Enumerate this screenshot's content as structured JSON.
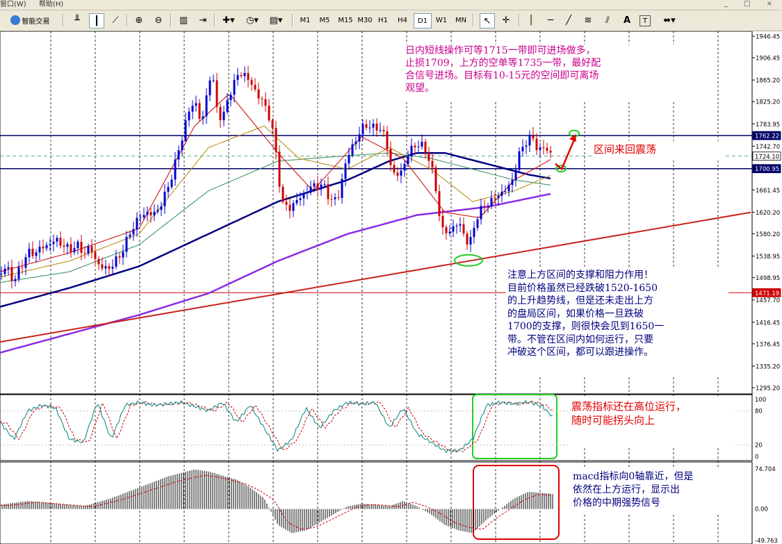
{
  "menu": {
    "items": [
      "窗口(W)",
      "帮助(H)"
    ],
    "window_controls": "_ □ ×"
  },
  "toolbar": {
    "expert_label": "智能交易",
    "timeframes": [
      "M1",
      "M5",
      "M15",
      "M30",
      "H1",
      "H4",
      "D1",
      "W1",
      "MN"
    ],
    "active_timeframe": "D1",
    "icons": [
      "bar-chart-icon",
      "candlestick-icon",
      "line-chart-icon",
      "zoom-in-icon",
      "zoom-out-icon",
      "tile-windows-icon",
      "chart-shift-icon",
      "add-indicator-icon",
      "periods-icon",
      "templates-icon",
      "cursor-icon",
      "crosshair-icon",
      "horizontal-line-icon",
      "trendline-icon",
      "fibonacci-icon",
      "text-icon",
      "text-label-icon",
      "arrows-icon"
    ],
    "text_tool": "A",
    "text_label_tool": "T"
  },
  "price_axis": {
    "ticks": [
      "1946.45",
      "1906.45",
      "1865.20",
      "1825.20",
      "1783.95",
      "1742.70",
      "1702.70",
      "1661.45",
      "1620.20",
      "1580.20",
      "1538.95",
      "1498.95",
      "1457.70",
      "1416.45",
      "1376.45",
      "1335.20",
      "1295.20"
    ],
    "highlight_labels": [
      {
        "text": "1762.22",
        "value": 1762.22,
        "style": "navy"
      },
      {
        "text": "1724.10",
        "value": 1724.1,
        "style": "white"
      },
      {
        "text": "1700.95",
        "value": 1700.95,
        "style": "navy"
      },
      {
        "text": "1471.19",
        "value": 1471.19,
        "style": "red"
      }
    ]
  },
  "stoch_axis": {
    "ticks": [
      "100",
      "80",
      "20",
      "0"
    ]
  },
  "macd_axis": {
    "ticks": [
      "74.704",
      "0.00",
      "-49.763"
    ]
  },
  "annotations": {
    "top_note": "日内短线操作可等1715一带即可进场做多，\n止损1709，上方的空单等1735一带，最好配\n合信号进场。目标有10-15元的空间即可离场\n观望。",
    "range_note": "区间来回震荡",
    "support_note": "注意上方区间的支撑和阻力作用！\n目前价格虽然已经跌破1520-1650\n的上升趋势线，但是还未走出上方\n的盘局区间，如果价格一旦跌破\n1700的支撑，则很快会见到1650一\n带。不管在区间内如何运行，只要\n冲破这个区间，都可以跟进操作。",
    "stoch_note": "震荡指标还在高位运行，\n随时可能拐头向上",
    "macd_note": "macd指标向0轴靠近，但是\n依然在上方运行，显示出\n价格的中期强势信号"
  },
  "colors": {
    "bull": "#0000cc",
    "bear": "#cc0000",
    "navy": "#000066",
    "trend": "#c8201c",
    "purple": "#8a2be2",
    "ma_green": "#2e8b57",
    "annotation_pink": "#c8008c",
    "annotation_red": "#e00000",
    "annotation_navy": "#00007f",
    "highlight_green": "#22cc22"
  },
  "chart_data": {
    "type": "candlestick",
    "timeframe": "D1",
    "levels": {
      "resistance": 1762.22,
      "bid": 1724.1,
      "support": 1700.95,
      "red_line": 1471.19
    },
    "ohlc_keypoints": [
      [
        0,
        1505
      ],
      [
        10,
        1520
      ],
      [
        20,
        1490
      ],
      [
        30,
        1520
      ],
      [
        40,
        1545
      ],
      [
        50,
        1545
      ],
      [
        60,
        1555
      ],
      [
        70,
        1560
      ],
      [
        80,
        1570
      ],
      [
        90,
        1560
      ],
      [
        100,
        1550
      ],
      [
        110,
        1560
      ],
      [
        120,
        1545
      ],
      [
        130,
        1555
      ],
      [
        140,
        1525
      ],
      [
        150,
        1515
      ],
      [
        160,
        1520
      ],
      [
        170,
        1535
      ],
      [
        180,
        1560
      ],
      [
        190,
        1590
      ],
      [
        200,
        1610
      ],
      [
        210,
        1620
      ],
      [
        220,
        1615
      ],
      [
        230,
        1630
      ],
      [
        240,
        1660
      ],
      [
        250,
        1700
      ],
      [
        260,
        1750
      ],
      [
        270,
        1800
      ],
      [
        280,
        1830
      ],
      [
        290,
        1780
      ],
      [
        300,
        1860
      ],
      [
        305,
        1885
      ],
      [
        310,
        1820
      ],
      [
        320,
        1790
      ],
      [
        330,
        1840
      ],
      [
        340,
        1870
      ],
      [
        350,
        1880
      ],
      [
        360,
        1860
      ],
      [
        370,
        1840
      ],
      [
        380,
        1820
      ],
      [
        390,
        1790
      ],
      [
        400,
        1700
      ],
      [
        405,
        1640
      ],
      [
        415,
        1625
      ],
      [
        425,
        1640
      ],
      [
        435,
        1650
      ],
      [
        445,
        1665
      ],
      [
        455,
        1670
      ],
      [
        465,
        1670
      ],
      [
        475,
        1645
      ],
      [
        485,
        1640
      ],
      [
        495,
        1700
      ],
      [
        505,
        1740
      ],
      [
        515,
        1760
      ],
      [
        525,
        1785
      ],
      [
        535,
        1775
      ],
      [
        545,
        1780
      ],
      [
        555,
        1755
      ],
      [
        565,
        1690
      ],
      [
        575,
        1690
      ],
      [
        585,
        1720
      ],
      [
        595,
        1745
      ],
      [
        605,
        1745
      ],
      [
        615,
        1730
      ],
      [
        625,
        1680
      ],
      [
        635,
        1590
      ],
      [
        645,
        1580
      ],
      [
        655,
        1600
      ],
      [
        665,
        1590
      ],
      [
        675,
        1555
      ],
      [
        685,
        1610
      ],
      [
        695,
        1630
      ],
      [
        705,
        1640
      ],
      [
        715,
        1650
      ],
      [
        725,
        1660
      ],
      [
        735,
        1670
      ],
      [
        745,
        1720
      ],
      [
        755,
        1750
      ],
      [
        765,
        1760
      ],
      [
        775,
        1735
      ],
      [
        785,
        1740
      ],
      [
        795,
        1724
      ]
    ],
    "moving_averages": [
      {
        "color": "#000080",
        "width": 2.5,
        "points": [
          [
            0,
            1445
          ],
          [
            100,
            1480
          ],
          [
            200,
            1520
          ],
          [
            300,
            1580
          ],
          [
            400,
            1640
          ],
          [
            500,
            1680
          ],
          [
            560,
            1715
          ],
          [
            600,
            1730
          ],
          [
            640,
            1730
          ],
          [
            700,
            1710
          ],
          [
            760,
            1690
          ],
          [
            795,
            1682
          ]
        ]
      },
      {
        "color": "#8a2be2",
        "width": 2.5,
        "points": [
          [
            0,
            1360
          ],
          [
            100,
            1395
          ],
          [
            200,
            1430
          ],
          [
            300,
            1470
          ],
          [
            400,
            1530
          ],
          [
            500,
            1580
          ],
          [
            600,
            1615
          ],
          [
            700,
            1630
          ],
          [
            795,
            1655
          ]
        ]
      },
      {
        "color": "#2e8b57",
        "width": 1,
        "points": [
          [
            0,
            1490
          ],
          [
            100,
            1510
          ],
          [
            200,
            1560
          ],
          [
            300,
            1660
          ],
          [
            400,
            1715
          ],
          [
            450,
            1720
          ],
          [
            500,
            1725
          ],
          [
            560,
            1730
          ],
          [
            620,
            1720
          ],
          [
            680,
            1700
          ],
          [
            740,
            1680
          ],
          [
            795,
            1670
          ]
        ]
      },
      {
        "color": "#b8860b",
        "width": 1,
        "points": [
          [
            0,
            1500
          ],
          [
            100,
            1530
          ],
          [
            200,
            1580
          ],
          [
            300,
            1740
          ],
          [
            380,
            1780
          ],
          [
            430,
            1720
          ],
          [
            500,
            1700
          ],
          [
            560,
            1740
          ],
          [
            620,
            1700
          ],
          [
            680,
            1640
          ],
          [
            740,
            1660
          ],
          [
            795,
            1690
          ]
        ]
      },
      {
        "color": "#cc0000",
        "width": 1,
        "points": [
          [
            0,
            1510
          ],
          [
            100,
            1545
          ],
          [
            200,
            1590
          ],
          [
            280,
            1780
          ],
          [
            330,
            1840
          ],
          [
            400,
            1730
          ],
          [
            450,
            1660
          ],
          [
            520,
            1760
          ],
          [
            580,
            1720
          ],
          [
            640,
            1620
          ],
          [
            690,
            1610
          ],
          [
            740,
            1680
          ],
          [
            795,
            1720
          ]
        ]
      }
    ],
    "trendline": {
      "color": "#c8201c",
      "from": [
        0,
        1380
      ],
      "to": [
        1080,
        1620
      ]
    },
    "stochastic": {
      "main": [
        [
          0,
          60
        ],
        [
          20,
          30
        ],
        [
          40,
          80
        ],
        [
          60,
          90
        ],
        [
          80,
          85
        ],
        [
          100,
          30
        ],
        [
          120,
          25
        ],
        [
          140,
          95
        ],
        [
          160,
          30
        ],
        [
          180,
          90
        ],
        [
          200,
          95
        ],
        [
          220,
          90
        ],
        [
          240,
          92
        ],
        [
          260,
          95
        ],
        [
          280,
          88
        ],
        [
          300,
          80
        ],
        [
          320,
          95
        ],
        [
          340,
          60
        ],
        [
          360,
          90
        ],
        [
          380,
          50
        ],
        [
          400,
          10
        ],
        [
          420,
          30
        ],
        [
          440,
          85
        ],
        [
          460,
          50
        ],
        [
          480,
          80
        ],
        [
          500,
          95
        ],
        [
          520,
          92
        ],
        [
          540,
          95
        ],
        [
          560,
          50
        ],
        [
          580,
          85
        ],
        [
          600,
          40
        ],
        [
          620,
          25
        ],
        [
          640,
          10
        ],
        [
          660,
          10
        ],
        [
          680,
          30
        ],
        [
          700,
          90
        ],
        [
          720,
          95
        ],
        [
          740,
          92
        ],
        [
          760,
          96
        ],
        [
          780,
          88
        ],
        [
          795,
          70
        ]
      ],
      "signal_color": "#cc0000",
      "main_color": "#008080"
    },
    "macd": {
      "histogram": [
        [
          0,
          8
        ],
        [
          40,
          15
        ],
        [
          80,
          10
        ],
        [
          120,
          5
        ],
        [
          160,
          20
        ],
        [
          200,
          40
        ],
        [
          240,
          60
        ],
        [
          280,
          74
        ],
        [
          300,
          70
        ],
        [
          340,
          55
        ],
        [
          360,
          40
        ],
        [
          380,
          20
        ],
        [
          400,
          -30
        ],
        [
          420,
          -45
        ],
        [
          440,
          -40
        ],
        [
          460,
          -25
        ],
        [
          480,
          -10
        ],
        [
          500,
          5
        ],
        [
          520,
          10
        ],
        [
          540,
          8
        ],
        [
          560,
          5
        ],
        [
          580,
          15
        ],
        [
          600,
          5
        ],
        [
          620,
          -10
        ],
        [
          640,
          -30
        ],
        [
          660,
          -40
        ],
        [
          680,
          -45
        ],
        [
          700,
          -20
        ],
        [
          720,
          0
        ],
        [
          740,
          20
        ],
        [
          760,
          32
        ],
        [
          780,
          30
        ],
        [
          795,
          28
        ]
      ],
      "signal_color": "#cc0000",
      "histogram_color": "#000000"
    }
  }
}
